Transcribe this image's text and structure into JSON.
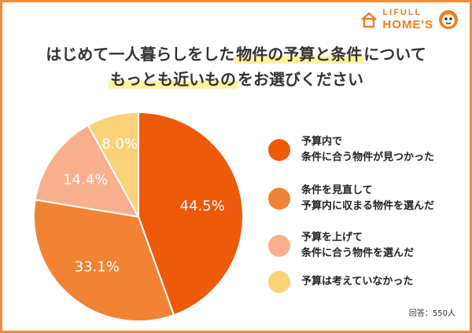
{
  "brand": {
    "line1": "LIFULL",
    "line2": "HOME'S",
    "color": "#f07d1e"
  },
  "title": {
    "line1_prefix": "はじめて一人暮らしをした",
    "line1_highlight": "物件の予算と条件",
    "line1_suffix": "について",
    "line2_highlight": "もっとも近いもの",
    "line2_suffix": "をお選びください"
  },
  "note": "回答：550人",
  "chart_data": {
    "type": "pie",
    "title": "はじめて一人暮らしをした物件の予算と条件についてもっとも近いものをお選びください",
    "slices": [
      {
        "label": "予算内で\n条件に合う物件が見つかった",
        "value": 44.5,
        "display": "44.5%",
        "color": "#ec5a0a"
      },
      {
        "label": "条件を見直して\n予算内に収まる物件を選んだ",
        "value": 33.1,
        "display": "33.1%",
        "color": "#f08434"
      },
      {
        "label": "予算を上げて\n条件に合う物件を選んだ",
        "value": 14.4,
        "display": "14.4%",
        "color": "#f8b08c"
      },
      {
        "label": "予算は考えていなかった",
        "value": 8.0,
        "display": "8.0%",
        "color": "#fad27a"
      }
    ],
    "start_angle_deg": 0,
    "direction": "clockwise",
    "legend_position": "right"
  }
}
